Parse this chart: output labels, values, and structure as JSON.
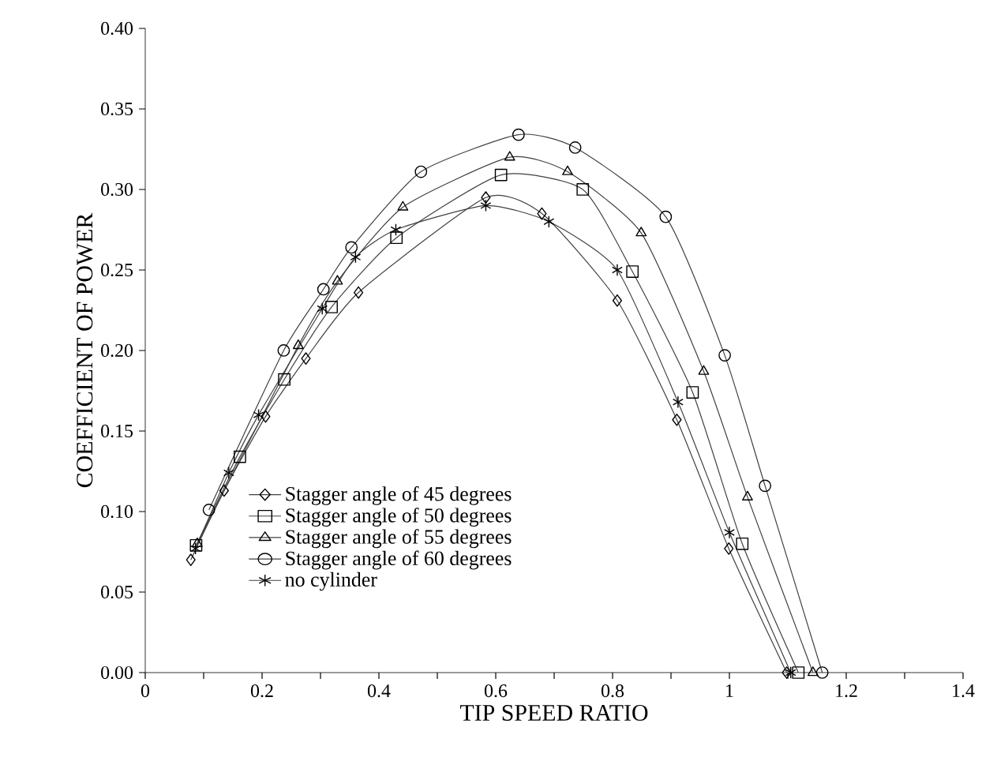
{
  "chart_data": {
    "type": "line",
    "xlabel": "TIP SPEED RATIO",
    "ylabel": "COEFFICIENT OF POWER",
    "xlim": [
      0,
      1.4
    ],
    "xticks": [
      0,
      0.2,
      0.4,
      0.6,
      0.8,
      1,
      1.2,
      1.4
    ],
    "ylim": [
      0,
      0.4
    ],
    "yticks": [
      {
        "value": 0,
        "label": "0.00"
      },
      {
        "value": 0.05,
        "label": "0.05"
      },
      {
        "value": 0.1,
        "label": "0.10"
      },
      {
        "value": 0.15,
        "label": "0.15"
      },
      {
        "value": 0.2,
        "label": "0.20"
      },
      {
        "value": 0.25,
        "label": "0.25"
      },
      {
        "value": 0.3,
        "label": "0.30"
      },
      {
        "value": 0.35,
        "label": "0.35"
      },
      {
        "value": 0.4,
        "label": "0.40"
      }
    ],
    "grid": false,
    "legend": "bottom left",
    "line_style": "solid",
    "series": [
      {
        "name": "Stagger angle of 45 degrees",
        "color": "#404040",
        "marker": "diamond",
        "x": [
          0.078,
          0.135,
          0.206,
          0.275,
          0.365,
          0.583,
          0.679,
          0.808,
          0.91,
          0.999,
          1.098
        ],
        "values": [
          0.07,
          0.113,
          0.159,
          0.195,
          0.236,
          0.295,
          0.285,
          0.231,
          0.157,
          0.077,
          0
        ]
      },
      {
        "name": "Stagger angle of 50 degrees",
        "color": "#404040",
        "marker": "square",
        "x": [
          0.087,
          0.162,
          0.238,
          0.319,
          0.43,
          0.609,
          0.749,
          0.834,
          0.937,
          1.022,
          1.118
        ],
        "values": [
          0.079,
          0.134,
          0.182,
          0.227,
          0.27,
          0.309,
          0.3,
          0.249,
          0.174,
          0.08,
          0
        ]
      },
      {
        "name": "Stagger angle of 55 degrees",
        "color": "#404040",
        "marker": "triangle",
        "x": [
          0.089,
          0.262,
          0.329,
          0.441,
          0.624,
          0.723,
          0.849,
          0.956,
          1.031,
          1.143
        ],
        "values": [
          0.08,
          0.203,
          0.243,
          0.289,
          0.32,
          0.311,
          0.273,
          0.187,
          0.109,
          0
        ]
      },
      {
        "name": "Stagger angle of 60 degrees",
        "color": "#404040",
        "marker": "circle",
        "x": [
          0.109,
          0.237,
          0.305,
          0.353,
          0.472,
          0.639,
          0.736,
          0.891,
          0.992,
          1.061,
          1.159
        ],
        "values": [
          0.101,
          0.2,
          0.238,
          0.264,
          0.311,
          0.334,
          0.326,
          0.283,
          0.197,
          0.116,
          0
        ]
      },
      {
        "name": "no cylinder",
        "color": "#404040",
        "marker": "cross",
        "x": [
          0.086,
          0.143,
          0.194,
          0.303,
          0.36,
          0.429,
          0.583,
          0.691,
          0.808,
          0.912,
          1.0,
          1.105
        ],
        "values": [
          0.077,
          0.124,
          0.16,
          0.226,
          0.258,
          0.275,
          0.29,
          0.28,
          0.25,
          0.168,
          0.087,
          0
        ]
      }
    ]
  }
}
